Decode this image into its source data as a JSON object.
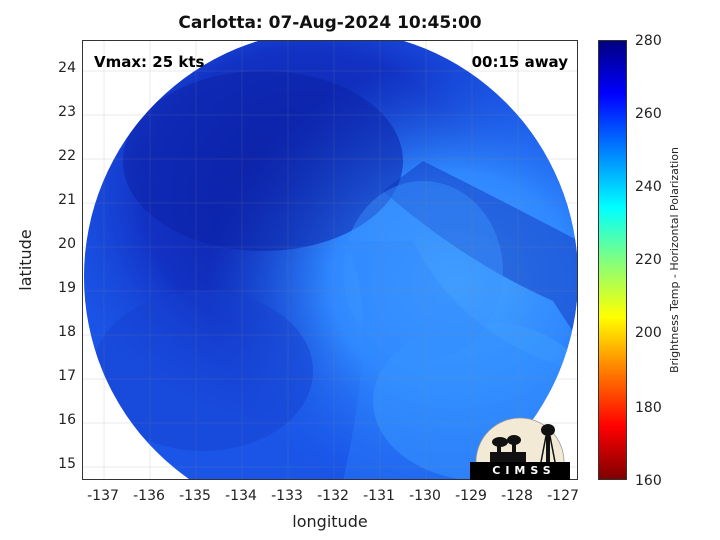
{
  "title": "Carlotta: 07-Aug-2024 10:45:00",
  "annotations": {
    "vmax": "Vmax: 25 kts",
    "time_offset": "00:15 away"
  },
  "axes": {
    "xlabel": "longitude",
    "ylabel": "latitude",
    "xticks": [
      "-137",
      "-136",
      "-135",
      "-134",
      "-133",
      "-132",
      "-131",
      "-130",
      "-129",
      "-128",
      "-127"
    ],
    "yticks": [
      "24",
      "23",
      "22",
      "21",
      "20",
      "19",
      "18",
      "17",
      "16",
      "15"
    ],
    "xlim": [
      -137.5,
      -126.8
    ],
    "ylim": [
      14.6,
      24.7
    ]
  },
  "colorbar": {
    "label": "Brightness Temp - Horizontal Polarization",
    "ticks": [
      "280",
      "260",
      "240",
      "220",
      "200",
      "180",
      "160"
    ],
    "range": [
      160,
      280
    ],
    "colormap": "jet"
  },
  "logo": {
    "text": "CIMSS"
  },
  "colors": {
    "field_dark": "#0c1fa8",
    "field_mid": "#1445d8",
    "field_light": "#2a7fff",
    "field_pale": "#3f9cff"
  }
}
